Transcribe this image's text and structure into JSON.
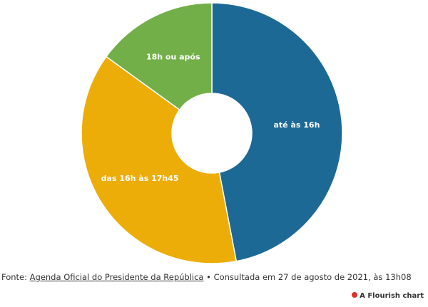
{
  "chart_data": {
    "type": "pie",
    "categories": [
      "até às 16h",
      "das 16h às 17h45",
      "18h ou após"
    ],
    "values": [
      47,
      38,
      15
    ],
    "colors": [
      "#1d6996",
      "#edad08",
      "#73af48"
    ],
    "source_prefix": "Fonte:",
    "source_link": "Agenda Oficial do Presidente da República",
    "source_suffix": "• Consultada em 27 de agosto de 2021, às 13h08",
    "badge": "A Flourish chart"
  }
}
